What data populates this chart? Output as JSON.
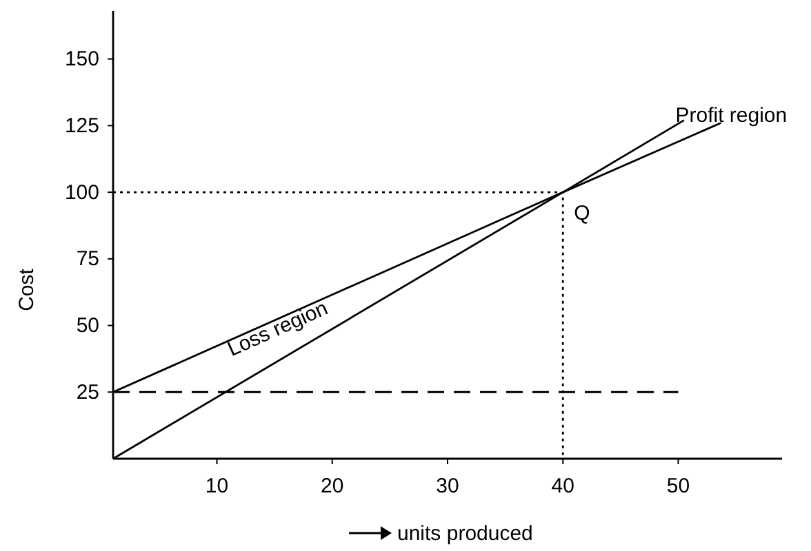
{
  "chart_data": {
    "type": "line",
    "xlabel": "units produced",
    "ylabel": "Cost",
    "xlim": [
      1,
      59
    ],
    "ylim": [
      0,
      168
    ],
    "xticks": [
      10,
      20,
      30,
      40,
      50
    ],
    "yticks": [
      25,
      50,
      75,
      100,
      125,
      150
    ],
    "grid": false,
    "marker": "none",
    "series": [
      {
        "color": "#000000",
        "line_style": "solid",
        "x": [
          1,
          40,
          50.5
        ],
        "values": [
          0,
          100,
          127
        ]
      },
      {
        "color": "#000000",
        "line_style": "solid",
        "x": [
          1,
          40,
          53.7
        ],
        "values": [
          25,
          100,
          126
        ]
      },
      {
        "color": "#000000",
        "line_style": "dashed",
        "x": [
          1,
          50
        ],
        "values": [
          25,
          25
        ]
      },
      {
        "color": "#000000",
        "line_style": "dotted",
        "x": [
          1,
          40,
          40
        ],
        "values": [
          100,
          100,
          0
        ]
      }
    ],
    "annotations": [
      "Loss region",
      {
        "text": "Profit region",
        "x": 50,
        "y": 118
      },
      {
        "text": "Q",
        "x": 40,
        "y": 100
      }
    ]
  }
}
